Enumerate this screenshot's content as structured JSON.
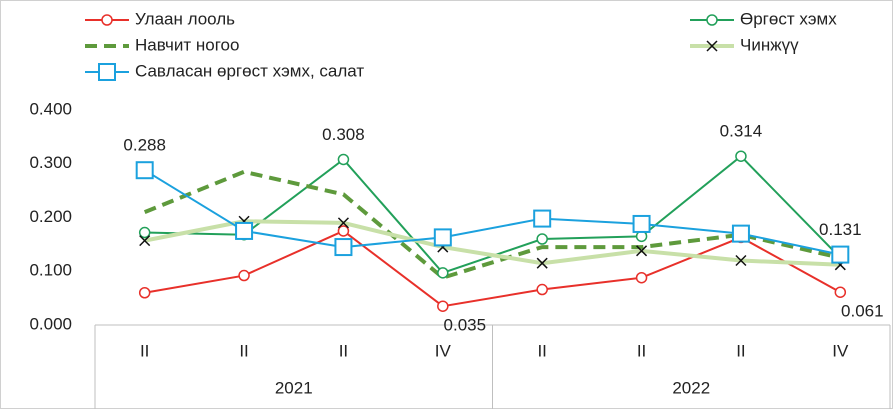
{
  "chart_data": {
    "type": "line",
    "categories": [
      "II",
      "II",
      "II",
      "IV",
      "II",
      "II",
      "II",
      "IV"
    ],
    "category_groups": [
      {
        "label": "2021",
        "span": 4
      },
      {
        "label": "2022",
        "span": 4
      }
    ],
    "ylim": [
      0,
      0.4
    ],
    "yticks": [
      {
        "value": 0,
        "label": "0.000"
      },
      {
        "value": 0.1,
        "label": "0.100"
      },
      {
        "value": 0.2,
        "label": "0.200"
      },
      {
        "value": 0.3,
        "label": "0.300"
      },
      {
        "value": 0.4,
        "label": "0.400"
      }
    ],
    "grid": false,
    "series": [
      {
        "name": "Улаан лооль",
        "color": "#e8302a",
        "style": "solid",
        "marker": "circle",
        "values": [
          0.06,
          0.092,
          0.175,
          0.035,
          0.066,
          0.088,
          0.163,
          0.061
        ],
        "value_labels": [
          null,
          null,
          null,
          "0.035",
          null,
          null,
          null,
          "0.061"
        ]
      },
      {
        "name": "Өргөст хэмх",
        "color": "#22a05a",
        "style": "solid",
        "marker": "circle",
        "values": [
          0.172,
          0.168,
          0.308,
          0.097,
          0.16,
          0.165,
          0.314,
          0.125
        ],
        "value_labels": [
          null,
          null,
          "0.308",
          null,
          null,
          null,
          "0.314",
          null
        ]
      },
      {
        "name": "Навчит ногоо",
        "color": "#5e9a3c",
        "style": "dashed",
        "marker": "none",
        "values": [
          0.21,
          0.285,
          0.243,
          0.088,
          0.145,
          0.145,
          0.168,
          0.125
        ]
      },
      {
        "name": "Чинжүү",
        "color": "#c8e0a8",
        "style": "solid",
        "marker": "x",
        "values": [
          0.157,
          0.193,
          0.19,
          0.145,
          0.115,
          0.138,
          0.12,
          0.112
        ]
      },
      {
        "name": "Савласан өргөст хэмх, салат",
        "color": "#1ba1de",
        "style": "solid",
        "marker": "square",
        "values": [
          0.288,
          0.175,
          0.145,
          0.163,
          0.198,
          0.188,
          0.17,
          0.131
        ],
        "value_labels": [
          "0.288",
          null,
          null,
          null,
          null,
          null,
          null,
          "0.131"
        ]
      }
    ]
  }
}
